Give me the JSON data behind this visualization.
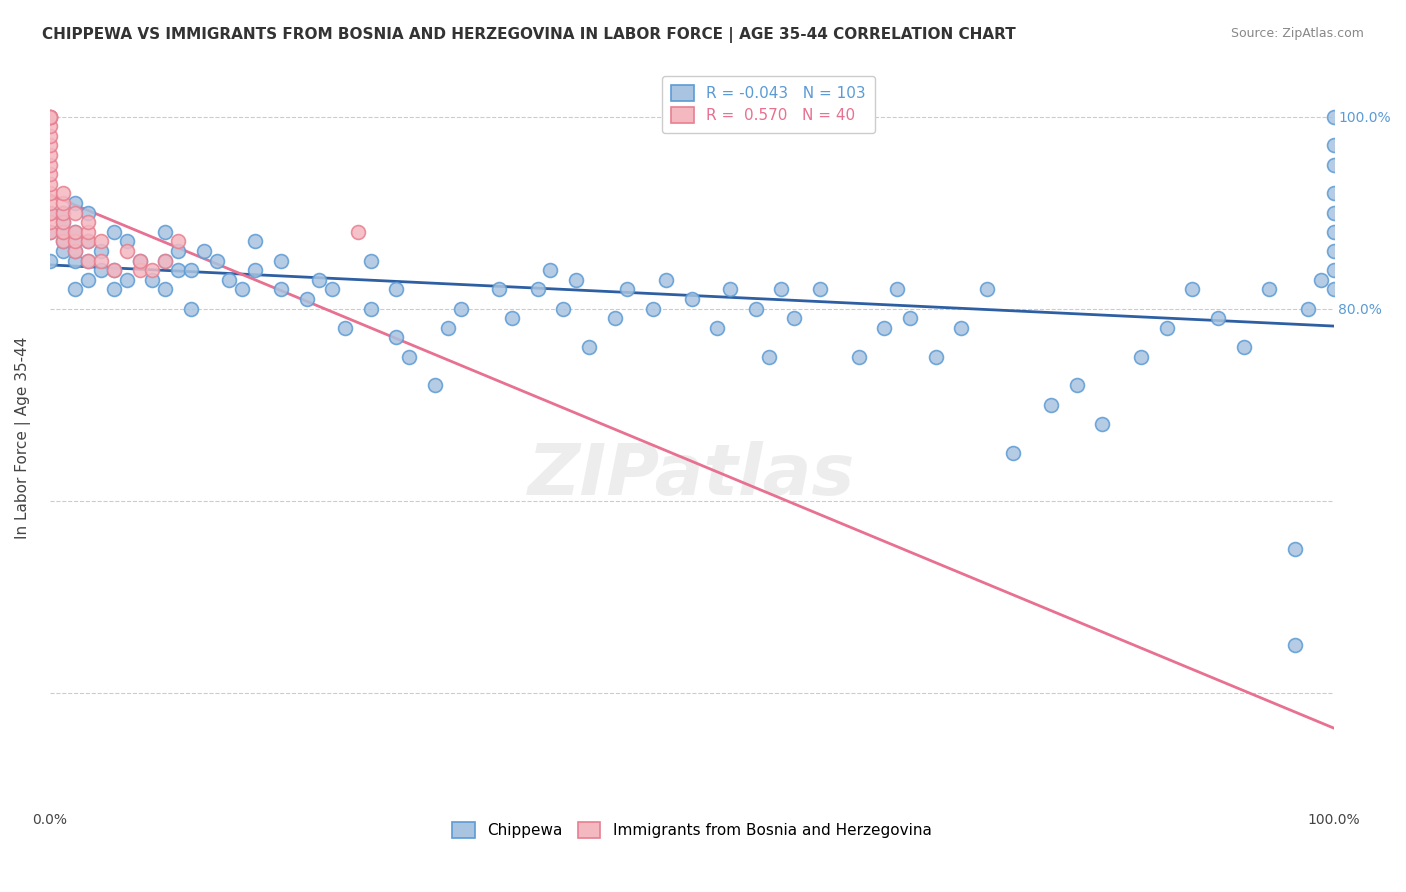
{
  "title": "CHIPPEWA VS IMMIGRANTS FROM BOSNIA AND HERZEGOVINA IN LABOR FORCE | AGE 35-44 CORRELATION CHART",
  "source": "Source: ZipAtlas.com",
  "xlabel": "",
  "ylabel": "In Labor Force | Age 35-44",
  "blue_label": "Chippewa",
  "pink_label": "Immigrants from Bosnia and Herzegovina",
  "blue_R": -0.043,
  "blue_N": 103,
  "pink_R": 0.57,
  "pink_N": 40,
  "blue_color": "#a8c4e0",
  "blue_edge": "#5b9bd5",
  "pink_color": "#f4b8c1",
  "pink_edge": "#e87f8f",
  "blue_line_color": "#2e5fa3",
  "pink_line_color": "#e87090",
  "background_color": "#ffffff",
  "grid_color": "#cccccc",
  "xlim": [
    0.0,
    1.0
  ],
  "ylim": [
    0.28,
    1.05
  ],
  "right_yticks": [
    0.8,
    1.0
  ],
  "right_yticklabels": [
    "80.0%",
    "100.0%"
  ],
  "blue_scatter_x": [
    0.0,
    0.0,
    0.0,
    0.01,
    0.01,
    0.01,
    0.01,
    0.01,
    0.02,
    0.02,
    0.02,
    0.02,
    0.02,
    0.02,
    0.03,
    0.03,
    0.03,
    0.03,
    0.04,
    0.04,
    0.05,
    0.05,
    0.05,
    0.06,
    0.06,
    0.07,
    0.08,
    0.09,
    0.09,
    0.09,
    0.1,
    0.1,
    0.11,
    0.11,
    0.12,
    0.13,
    0.14,
    0.15,
    0.16,
    0.16,
    0.18,
    0.18,
    0.2,
    0.21,
    0.22,
    0.23,
    0.25,
    0.25,
    0.27,
    0.27,
    0.28,
    0.3,
    0.31,
    0.32,
    0.35,
    0.36,
    0.38,
    0.39,
    0.4,
    0.41,
    0.42,
    0.44,
    0.45,
    0.47,
    0.48,
    0.5,
    0.52,
    0.53,
    0.55,
    0.56,
    0.57,
    0.58,
    0.6,
    0.63,
    0.65,
    0.66,
    0.67,
    0.69,
    0.71,
    0.73,
    0.75,
    0.78,
    0.8,
    0.82,
    0.85,
    0.87,
    0.89,
    0.91,
    0.93,
    0.95,
    0.97,
    0.97,
    0.98,
    0.99,
    1.0,
    1.0,
    1.0,
    1.0,
    1.0,
    1.0,
    1.0,
    1.0,
    1.0
  ],
  "blue_scatter_y": [
    0.85,
    0.88,
    0.9,
    0.86,
    0.87,
    0.88,
    0.89,
    0.9,
    0.82,
    0.85,
    0.86,
    0.87,
    0.88,
    0.91,
    0.83,
    0.85,
    0.87,
    0.9,
    0.84,
    0.86,
    0.82,
    0.84,
    0.88,
    0.83,
    0.87,
    0.85,
    0.83,
    0.82,
    0.85,
    0.88,
    0.84,
    0.86,
    0.8,
    0.84,
    0.86,
    0.85,
    0.83,
    0.82,
    0.84,
    0.87,
    0.82,
    0.85,
    0.81,
    0.83,
    0.82,
    0.78,
    0.8,
    0.85,
    0.77,
    0.82,
    0.75,
    0.72,
    0.78,
    0.8,
    0.82,
    0.79,
    0.82,
    0.84,
    0.8,
    0.83,
    0.76,
    0.79,
    0.82,
    0.8,
    0.83,
    0.81,
    0.78,
    0.82,
    0.8,
    0.75,
    0.82,
    0.79,
    0.82,
    0.75,
    0.78,
    0.82,
    0.79,
    0.75,
    0.78,
    0.82,
    0.65,
    0.7,
    0.72,
    0.68,
    0.75,
    0.78,
    0.82,
    0.79,
    0.76,
    0.82,
    0.45,
    0.55,
    0.8,
    0.83,
    0.82,
    0.84,
    0.86,
    0.88,
    0.9,
    0.92,
    0.95,
    0.97,
    1.0
  ],
  "pink_scatter_x": [
    0.0,
    0.0,
    0.0,
    0.0,
    0.0,
    0.0,
    0.0,
    0.0,
    0.0,
    0.0,
    0.0,
    0.0,
    0.0,
    0.0,
    0.0,
    0.0,
    0.01,
    0.01,
    0.01,
    0.01,
    0.01,
    0.01,
    0.02,
    0.02,
    0.02,
    0.02,
    0.03,
    0.03,
    0.03,
    0.03,
    0.04,
    0.04,
    0.05,
    0.06,
    0.07,
    0.07,
    0.08,
    0.09,
    0.1,
    0.24
  ],
  "pink_scatter_y": [
    0.88,
    0.89,
    0.9,
    0.91,
    0.92,
    0.93,
    0.94,
    0.95,
    0.96,
    0.97,
    0.98,
    0.99,
    1.0,
    1.0,
    1.0,
    1.0,
    0.87,
    0.88,
    0.89,
    0.9,
    0.91,
    0.92,
    0.86,
    0.87,
    0.88,
    0.9,
    0.85,
    0.87,
    0.88,
    0.89,
    0.85,
    0.87,
    0.84,
    0.86,
    0.84,
    0.85,
    0.84,
    0.85,
    0.87,
    0.88
  ],
  "watermark": "ZIPatlas",
  "marker_size": 10
}
